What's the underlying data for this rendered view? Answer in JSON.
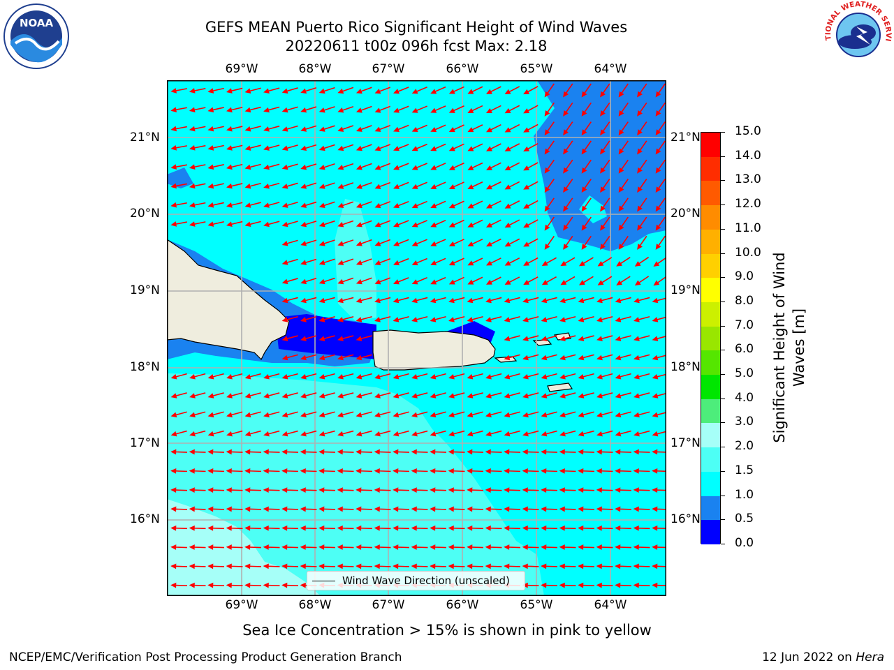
{
  "title_line1": "GEFS MEAN Puerto Rico Significant Height of Wind Waves",
  "title_line2": "20220611 t00z 096h fcst   Max: 2.18",
  "lon_labels": [
    "69°W",
    "68°W",
    "67°W",
    "66°W",
    "65°W",
    "64°W"
  ],
  "lat_labels": [
    "21°N",
    "20°N",
    "19°N",
    "18°N",
    "17°N",
    "16°N"
  ],
  "colorbar": {
    "label": "Significant Height of Wind Waves [m]",
    "label_line1": "Significant Height of Wind",
    "label_line2": "Waves [m]",
    "ticks": [
      "0.0",
      "0.5",
      "1.0",
      "1.5",
      "2.0",
      "3.0",
      "4.0",
      "5.0",
      "6.0",
      "7.0",
      "8.0",
      "9.0",
      "10.0",
      "11.0",
      "12.0",
      "13.0",
      "14.0",
      "15.0"
    ],
    "colors": [
      "#0000ff",
      "#1a82f0",
      "#00ffff",
      "#4dfff5",
      "#a6fff8",
      "#4ded7b",
      "#00e600",
      "#55e600",
      "#99e600",
      "#ccf000",
      "#ffff00",
      "#ffd000",
      "#ffb000",
      "#ff8c00",
      "#ff5a00",
      "#ff2d00",
      "#ff0000"
    ]
  },
  "legend_label": "Wind Wave Direction (unscaled)",
  "caption": "Sea Ice Concentration > 15% is shown in pink to yellow",
  "footer_left": "NCEP/EMC/Verification Post Processing Product Generation Branch",
  "footer_date": "12 Jun 2022 on ",
  "footer_host": "Hera",
  "logos": {
    "left": "NOAA",
    "right": "NATIONAL WEATHER SERVICE"
  },
  "map_colors": {
    "ocean_1_to_1_5": "#00ffff",
    "ocean_1_5_to_2": "#4dfff5",
    "ocean_2_to_3": "#a6fff8",
    "ocean_0_5_to_1": "#1a82f0",
    "ocean_0_to_0_5": "#0000ff",
    "land": "#efedde",
    "arrow": "#ff0000",
    "grid": "#b0b0b0"
  }
}
